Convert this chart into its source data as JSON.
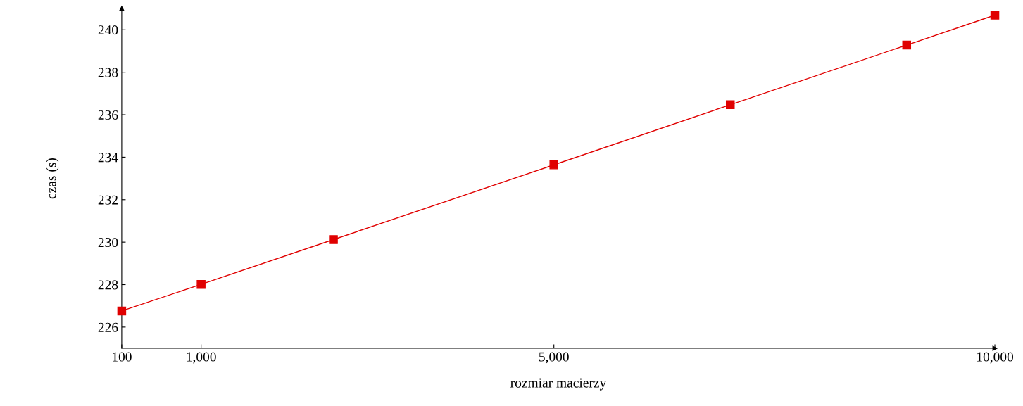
{
  "chart_data": {
    "type": "line",
    "xlabel": "rozmiar macierzy",
    "ylabel": "czas (s)",
    "x": [
      100,
      1000,
      2500,
      5000,
      7000,
      9000,
      10000
    ],
    "series": [
      {
        "color": "#e00000",
        "values": [
          226.76,
          228.01,
          230.12,
          233.64,
          236.47,
          239.28,
          240.69
        ]
      }
    ],
    "xlim": [
      100,
      10000
    ],
    "ylim": [
      225,
      241
    ],
    "xticks": [
      100,
      {
        "value": 1000,
        "label": "1,000"
      },
      {
        "value": 5000,
        "label": "5,000"
      },
      {
        "value": 10000,
        "label": "10,000"
      }
    ],
    "yticks": [
      226,
      228,
      230,
      232,
      234,
      236,
      238,
      240
    ],
    "marker": "square",
    "line_style": "solid",
    "grid": false,
    "legend": false
  }
}
